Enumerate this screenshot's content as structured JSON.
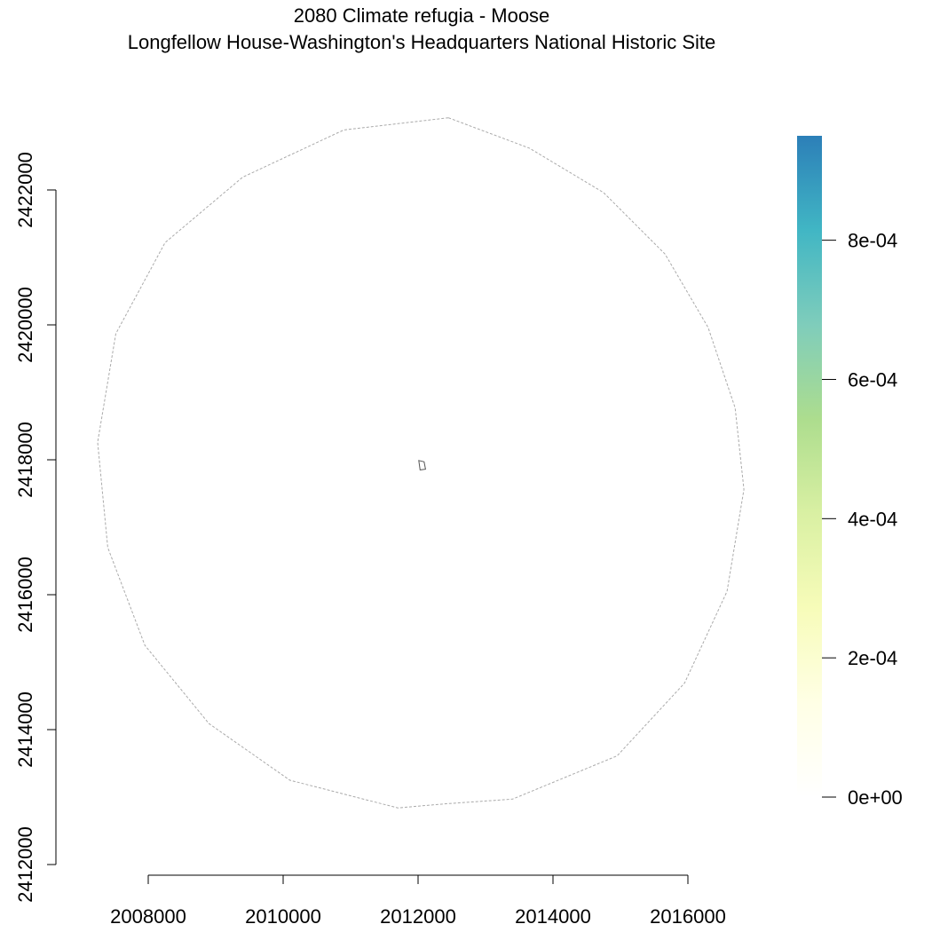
{
  "title": "2080 Climate refugia - Moose",
  "subtitle": "Longfellow House-Washington's Headquarters National Historic Site",
  "map": {
    "x_axis": {
      "ticks": [
        2008000,
        2010000,
        2012000,
        2014000,
        2016000
      ],
      "tick_labels": [
        "2008000",
        "2010000",
        "2012000",
        "2014000",
        "2016000"
      ]
    },
    "y_axis": {
      "ticks": [
        2412000,
        2414000,
        2416000,
        2418000,
        2420000,
        2422000
      ],
      "tick_labels": [
        "2412000",
        "2414000",
        "2416000",
        "2418000",
        "2420000",
        "2422000"
      ]
    },
    "buffer_outline_color": "#aaaaaa",
    "site_outline_color": "#555555",
    "legend": {
      "min": 0,
      "max": 0.00095,
      "ticks": [
        0,
        0.0002,
        0.0004,
        0.0006,
        0.0008
      ],
      "tick_labels": [
        "0e+00",
        "2e-04",
        "4e-04",
        "6e-04",
        "8e-04"
      ],
      "colors": [
        "#ffffff",
        "#ffffe5",
        "#f7fcb9",
        "#d9f0a3",
        "#addd8e",
        "#7fcdbb",
        "#41b6c4",
        "#2c7fb8"
      ]
    }
  }
}
